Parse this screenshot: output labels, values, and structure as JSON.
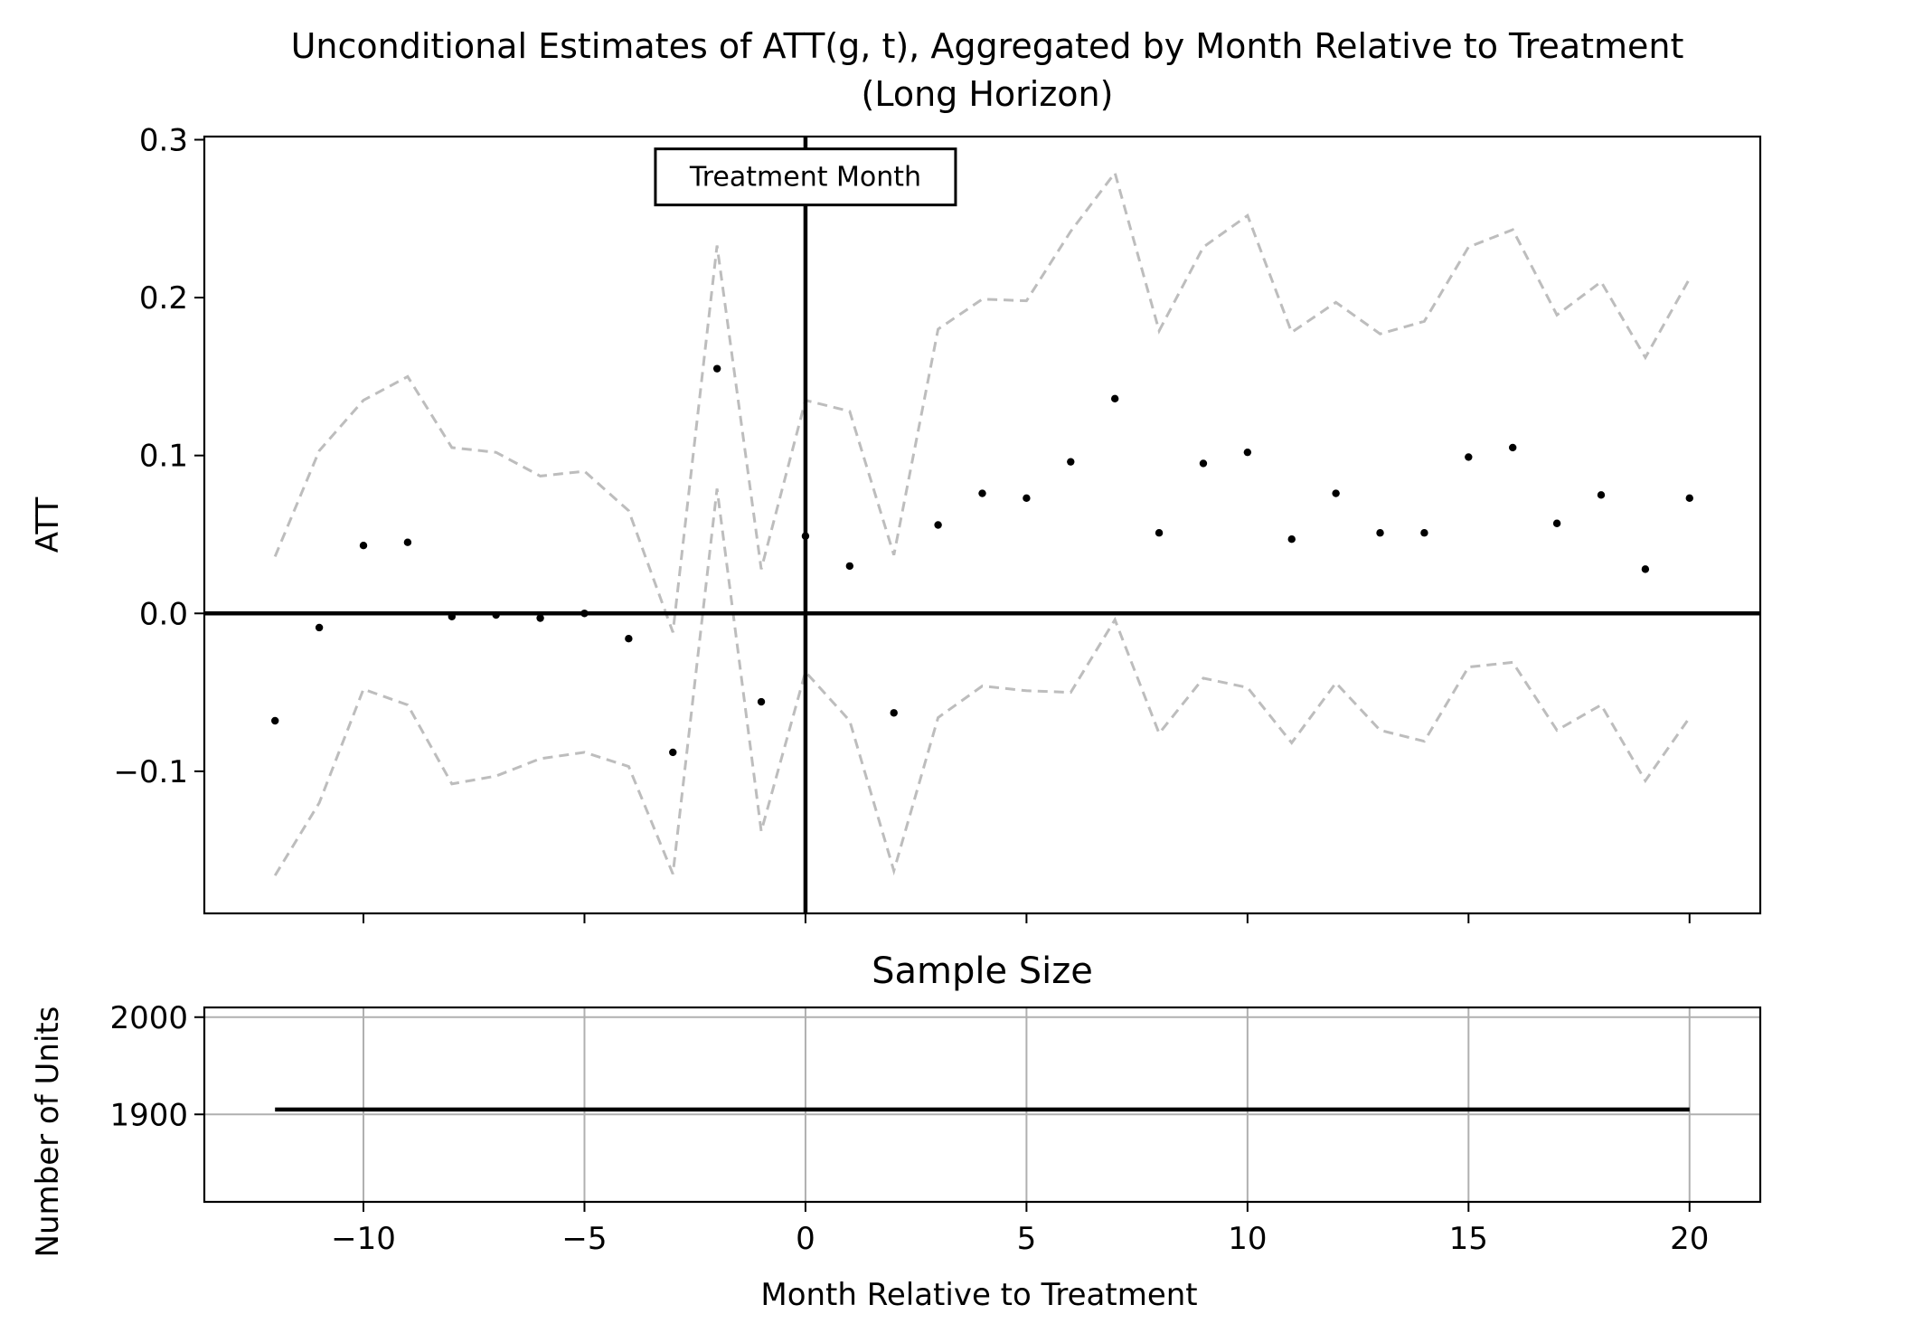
{
  "chart_data": [
    {
      "type": "scatter",
      "title_line1": "Unconditional Estimates of ATT(g, t), Aggregated by Month Relative to Treatment",
      "title_line2": "(Long Horizon)",
      "xlabel": "",
      "ylabel": "ATT",
      "xlim": [
        -13.6,
        21.6
      ],
      "ylim": [
        -0.19,
        0.302
      ],
      "yticks": [
        {
          "value": -0.1,
          "label": "−0.1"
        },
        {
          "value": 0.0,
          "label": "0.0"
        },
        {
          "value": 0.1,
          "label": "0.1"
        },
        {
          "value": 0.2,
          "label": "0.2"
        },
        {
          "value": 0.3,
          "label": "0.3"
        }
      ],
      "xticks": [
        -10,
        -5,
        0,
        5,
        10,
        15,
        20
      ],
      "x": [
        -12,
        -11,
        -10,
        -9,
        -8,
        -7,
        -6,
        -5,
        -4,
        -3,
        -2,
        -1,
        0,
        1,
        2,
        3,
        4,
        5,
        6,
        7,
        8,
        9,
        10,
        11,
        12,
        13,
        14,
        15,
        16,
        17,
        18,
        19,
        20
      ],
      "att": [
        -0.068,
        -0.009,
        0.043,
        0.045,
        -0.002,
        -0.001,
        -0.003,
        0.0,
        -0.016,
        -0.088,
        0.155,
        -0.056,
        0.049,
        0.03,
        -0.063,
        0.056,
        0.076,
        0.073,
        0.096,
        0.136,
        0.051,
        0.095,
        0.102,
        0.047,
        0.076,
        0.051,
        0.051,
        0.099,
        0.105,
        0.057,
        0.075,
        0.028,
        0.073
      ],
      "ci_upper": [
        0.036,
        0.103,
        0.135,
        0.15,
        0.105,
        0.102,
        0.087,
        0.09,
        0.065,
        -0.012,
        0.233,
        0.028,
        0.135,
        0.128,
        0.037,
        0.18,
        0.199,
        0.198,
        0.242,
        0.279,
        0.179,
        0.232,
        0.252,
        0.178,
        0.197,
        0.177,
        0.185,
        0.232,
        0.243,
        0.189,
        0.21,
        0.162,
        0.212
      ],
      "ci_lower": [
        -0.166,
        -0.12,
        -0.048,
        -0.058,
        -0.108,
        -0.103,
        -0.092,
        -0.088,
        -0.097,
        -0.165,
        0.079,
        -0.138,
        -0.037,
        -0.068,
        -0.163,
        -0.066,
        -0.046,
        -0.049,
        -0.05,
        -0.004,
        -0.076,
        -0.041,
        -0.047,
        -0.082,
        -0.044,
        -0.074,
        -0.081,
        -0.034,
        -0.031,
        -0.074,
        -0.058,
        -0.106,
        -0.066
      ],
      "hline": 0.0,
      "vline": 0,
      "annotation": "Treatment Month",
      "annotation_x": 0,
      "annotation_y": 0.277,
      "colors": {
        "points": "#000000",
        "ci": "#bdbdbd",
        "axis_lines": "#000000"
      }
    },
    {
      "type": "line",
      "title": "Sample Size",
      "xlabel": "Month Relative to Treatment",
      "ylabel": "Number of Units",
      "xlim": [
        -13.6,
        21.6
      ],
      "ylim": [
        1810,
        2010
      ],
      "yticks": [
        {
          "value": 1900,
          "label": "1900"
        },
        {
          "value": 2000,
          "label": "2000"
        }
      ],
      "xticks": [
        {
          "value": -10,
          "label": "−10"
        },
        {
          "value": -5,
          "label": "−5"
        },
        {
          "value": 0,
          "label": "0"
        },
        {
          "value": 5,
          "label": "5"
        },
        {
          "value": 10,
          "label": "10"
        },
        {
          "value": 15,
          "label": "15"
        },
        {
          "value": 20,
          "label": "20"
        }
      ],
      "grid": true,
      "x": [
        -12,
        20
      ],
      "values": [
        1905,
        1905
      ],
      "colors": {
        "line": "#000000",
        "grid": "#b0b0b0"
      }
    }
  ]
}
